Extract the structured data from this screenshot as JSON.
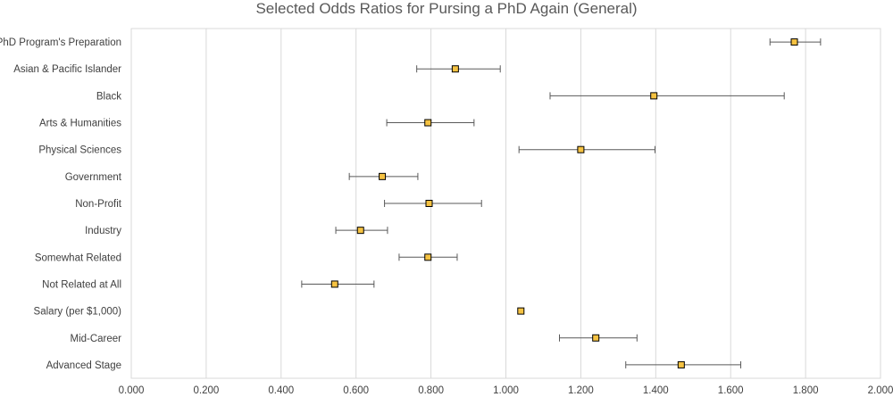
{
  "chart_data": {
    "type": "scatter",
    "title": "Selected Odds Ratios for Pursing a PhD Again (General)",
    "xlabel": "",
    "ylabel": "",
    "xlim": [
      0,
      2
    ],
    "x_ticks": [
      "0.000",
      "0.200",
      "0.400",
      "0.600",
      "0.800",
      "1.000",
      "1.200",
      "1.400",
      "1.600",
      "1.800",
      "2.000"
    ],
    "x_tick_values": [
      0,
      0.2,
      0.4,
      0.6,
      0.8,
      1.0,
      1.2,
      1.4,
      1.6,
      1.8,
      2.0
    ],
    "grid": "vertical",
    "legend": "none",
    "marker_color": "#F5C242",
    "marker_edge": "#000000",
    "error_bar_color": "#595959",
    "categories": [
      "PhD Program's Preparation",
      "Asian & Pacific Islander",
      "Black",
      "Arts & Humanities",
      "Physical Sciences",
      "Government",
      "Non-Profit",
      "Industry",
      "Somewhat Related",
      "Not Related at All",
      "Salary (per $1,000)",
      "Mid-Career",
      "Advanced Stage"
    ],
    "values": [
      1.77,
      0.865,
      1.395,
      0.792,
      1.2,
      0.67,
      0.795,
      0.612,
      0.792,
      0.543,
      1.04,
      1.24,
      1.468
    ],
    "ci_low": [
      1.705,
      0.762,
      1.118,
      0.682,
      1.035,
      0.582,
      0.676,
      0.546,
      0.715,
      0.455,
      1.04,
      1.143,
      1.32
    ],
    "ci_high": [
      1.84,
      0.985,
      1.743,
      0.915,
      1.398,
      0.765,
      0.935,
      0.684,
      0.87,
      0.648,
      1.04,
      1.35,
      1.627
    ]
  }
}
